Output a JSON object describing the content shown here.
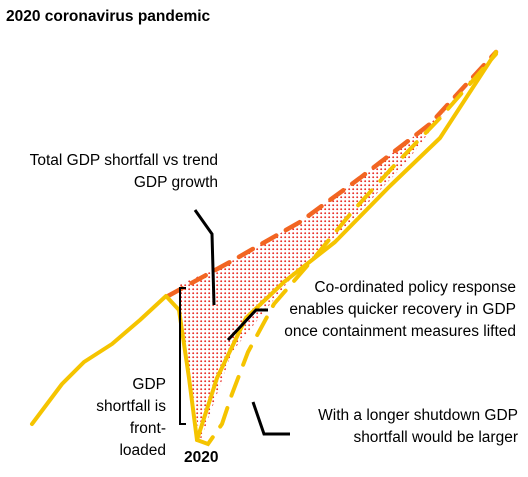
{
  "title": "2020 coronavirus pandemic",
  "annotations": {
    "total_shortfall": "Total GDP shortfall vs trend GDP growth",
    "policy_response": "Co-ordinated policy response enables quicker recovery in GDP once containment measures lifted",
    "front_loaded": "GDP shortfall is front-loaded",
    "longer_shutdown": "With a longer shutdown GDP shortfall would be larger"
  },
  "x_label": "2020",
  "colors": {
    "gdp_line": "#f5c400",
    "trend_line": "#f26522",
    "shortfall_fill": "#e8302a",
    "pointer": "#000000"
  }
}
